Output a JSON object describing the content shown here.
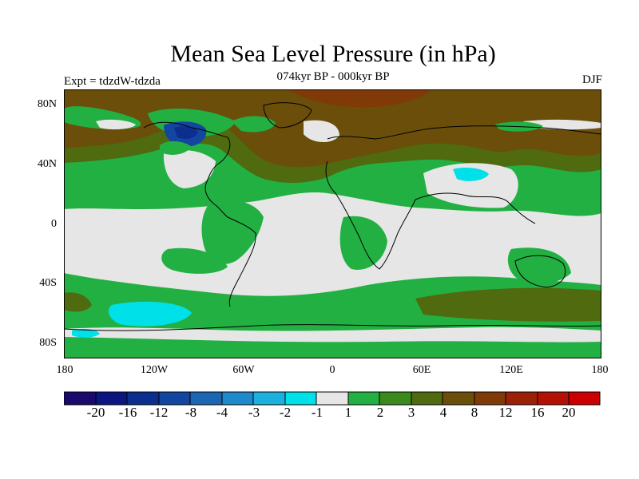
{
  "title": "Mean Sea Level Pressure (in hPa)",
  "subtitle": "074kyr BP - 000kyr BP",
  "experiment": "Expt = tdzdW-tdzda",
  "season": "DJF",
  "lat_labels": [
    "80N",
    "40N",
    "0",
    "40S",
    "80S"
  ],
  "lon_labels": [
    "180",
    "120W",
    "60W",
    "0",
    "60E",
    "120E",
    "180"
  ],
  "colorbar": {
    "labels": [
      "-20",
      "-16",
      "-12",
      "-8",
      "-4",
      "-3",
      "-2",
      "-1",
      "1",
      "2",
      "3",
      "4",
      "8",
      "12",
      "16",
      "20"
    ],
    "colors": [
      "#1a0a6e",
      "#0d1680",
      "#0c2f8f",
      "#1246a0",
      "#1c66b4",
      "#1e8acc",
      "#1bb0dd",
      "#00e0e8",
      "#e6e6e6",
      "#23b043",
      "#3a8a1c",
      "#4f6a0f",
      "#6a4e0a",
      "#7f3a08",
      "#9a2006",
      "#b51004",
      "#cc0000"
    ]
  },
  "colors": {
    "neutral": "#e6e6e6",
    "green": "#23b043",
    "dark_green": "#3a8a1c",
    "olive": "#4f6a0f",
    "brown": "#6a4e0a",
    "dark_brown": "#7f3a08",
    "cyan": "#00e0e8",
    "blue": "#1246a0"
  }
}
